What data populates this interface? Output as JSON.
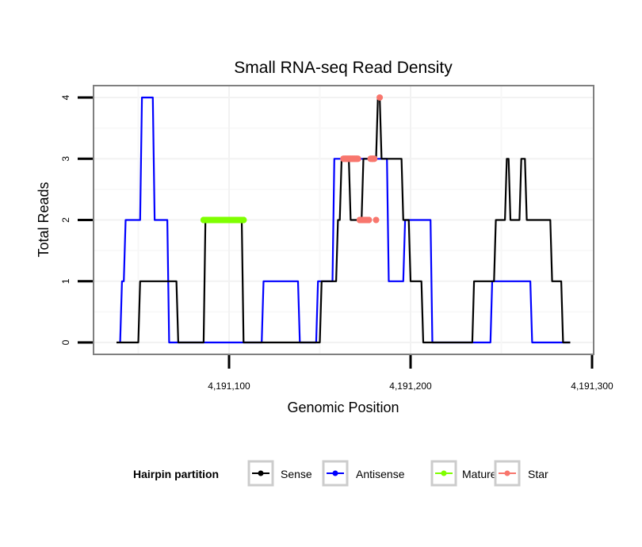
{
  "chart_data": {
    "type": "line",
    "title": "Small RNA-seq Read Density",
    "xlabel": "Genomic Position",
    "ylabel": "Total Reads",
    "xlim": [
      4191025,
      4191300
    ],
    "ylim": [
      -0.2,
      4.2
    ],
    "x_ticks": [
      4191100,
      4191200,
      4191300
    ],
    "x_tick_labels": [
      "4,191,100",
      "4,191,200",
      "4,191,300"
    ],
    "y_ticks": [
      0,
      1,
      2,
      3,
      4
    ],
    "y_tick_labels": [
      "0",
      "1",
      "2",
      "3",
      "4"
    ],
    "grid": true,
    "legend": {
      "title": "Hairpin partition",
      "position": "bottom",
      "entries": [
        {
          "name": "Sense",
          "color": "#000000"
        },
        {
          "name": "Antisense",
          "color": "#0000ff"
        },
        {
          "name": "Mature",
          "color": "#7fff00"
        },
        {
          "name": "Star",
          "color": "#f8766d"
        }
      ]
    },
    "series": [
      {
        "name": "Sense",
        "color": "#000000",
        "style": "line",
        "x": [
          4191038,
          4191050,
          4191051,
          4191071,
          4191072,
          4191086,
          4191087,
          4191107,
          4191108,
          4191150,
          4191151,
          4191159,
          4191160,
          4191161,
          4191162,
          4191166,
          4191167,
          4191173,
          4191174,
          4191181,
          4191182,
          4191183,
          4191184,
          4191185,
          4191186,
          4191195,
          4191196,
          4191199,
          4191200,
          4191206,
          4191207,
          4191234,
          4191235,
          4191246,
          4191247,
          4191252,
          4191253,
          4191254,
          4191255,
          4191260,
          4191261,
          4191263,
          4191264,
          4191268,
          4191269,
          4191277,
          4191278,
          4191283,
          4191284,
          4191288
        ],
        "y": [
          0,
          0,
          1,
          1,
          0,
          0,
          2,
          2,
          0,
          0,
          1,
          1,
          2,
          2,
          3,
          3,
          2,
          2,
          3,
          3,
          4,
          4,
          3,
          3,
          3,
          3,
          2,
          2,
          1,
          1,
          0,
          0,
          1,
          1,
          2,
          2,
          3,
          3,
          2,
          2,
          3,
          3,
          2,
          2,
          2,
          2,
          1,
          1,
          0,
          0
        ]
      },
      {
        "name": "Antisense",
        "color": "#0000ff",
        "style": "line",
        "x": [
          4191040,
          4191041,
          4191042,
          4191043,
          4191044,
          4191051,
          4191052,
          4191058,
          4191059,
          4191066,
          4191067,
          4191118,
          4191119,
          4191138,
          4191139,
          4191148,
          4191149,
          4191157,
          4191158,
          4191187,
          4191188,
          4191196,
          4191197,
          4191202,
          4191203,
          4191211,
          4191212,
          4191244,
          4191245,
          4191266,
          4191267,
          4191288
        ],
        "y": [
          0,
          1,
          1,
          2,
          2,
          2,
          4,
          4,
          2,
          2,
          0,
          0,
          1,
          1,
          0,
          0,
          1,
          1,
          3,
          3,
          1,
          1,
          2,
          2,
          2,
          2,
          0,
          0,
          1,
          1,
          0,
          0
        ]
      },
      {
        "name": "Mature",
        "color": "#7fff00",
        "style": "points",
        "x": [
          4191086,
          4191088,
          4191090,
          4191092,
          4191094,
          4191096,
          4191098,
          4191100,
          4191102,
          4191104,
          4191106,
          4191108
        ],
        "y": [
          2,
          2,
          2,
          2,
          2,
          2,
          2,
          2,
          2,
          2,
          2,
          2
        ]
      },
      {
        "name": "Star",
        "color": "#f8766d",
        "style": "points",
        "x": [
          4191163,
          4191164,
          4191165,
          4191166,
          4191167,
          4191168,
          4191169,
          4191170,
          4191171,
          4191172,
          4191173,
          4191174,
          4191175,
          4191176,
          4191177,
          4191178,
          4191179,
          4191180,
          4191181,
          4191183
        ],
        "y": [
          3,
          3,
          3,
          3,
          3,
          3,
          3,
          3,
          3,
          2,
          2,
          2,
          2,
          2,
          2,
          3,
          3,
          3,
          2,
          4
        ]
      }
    ]
  }
}
